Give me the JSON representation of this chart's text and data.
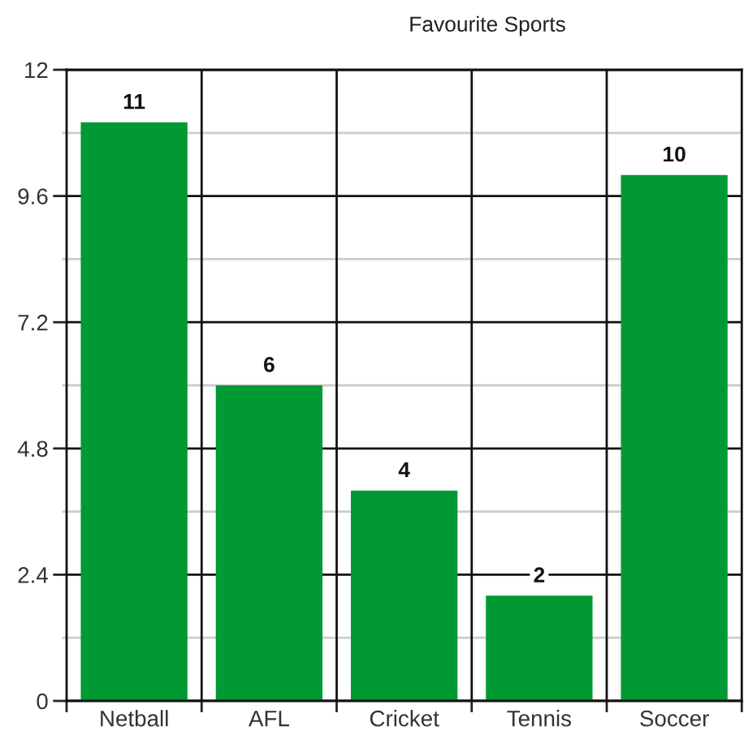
{
  "chart_data": {
    "type": "bar",
    "title": "Favourite Sports",
    "categories": [
      "Netball",
      "AFL",
      "Cricket",
      "Tennis",
      "Soccer"
    ],
    "values": [
      11,
      6,
      4,
      2,
      10
    ],
    "color": "#009933",
    "ylim": [
      0,
      12
    ],
    "yticks": [
      0,
      {
        "value": 1.2,
        "label": null
      },
      2.4,
      {
        "value": 3.6,
        "label": null
      },
      4.8,
      {
        "value": 6.0,
        "label": null
      },
      7.2,
      {
        "value": 8.4,
        "label": null
      },
      9.6,
      {
        "value": 10.8,
        "label": null
      },
      12
    ],
    "grid": true,
    "data_labels": true,
    "legend": false
  }
}
